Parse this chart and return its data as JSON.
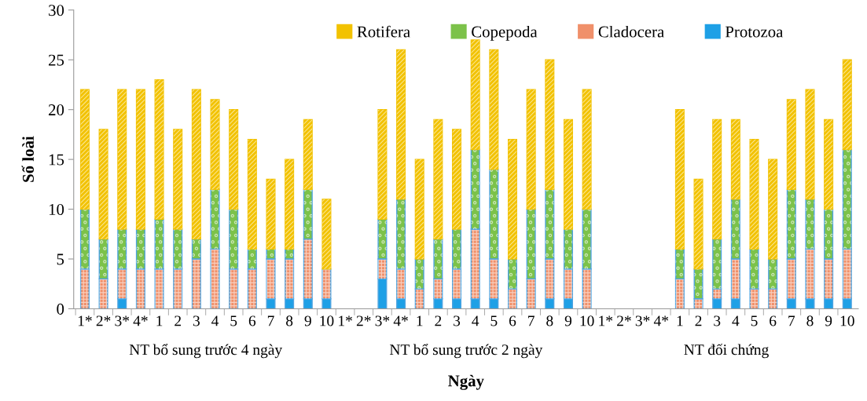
{
  "chart_data": {
    "type": "bar",
    "stacked": true,
    "xlabel": "Ngày",
    "ylabel": "Số loài",
    "categories": [
      "1*",
      "2*",
      "3*",
      "4*",
      "1",
      "2",
      "3",
      "4",
      "5",
      "6",
      "7",
      "8",
      "9",
      "10",
      "1*",
      "2*",
      "3*",
      "4*",
      "1",
      "2",
      "3",
      "4",
      "5",
      "6",
      "7",
      "8",
      "9",
      "10",
      "1*",
      "2*",
      "3*",
      "4*",
      "1",
      "2",
      "3",
      "4",
      "5",
      "6",
      "7",
      "8",
      "9",
      "10"
    ],
    "series": [
      {
        "name": "Protozoa",
        "color": "#1ea0e6",
        "values": [
          0,
          0,
          1,
          0,
          0,
          0,
          0,
          0,
          0,
          0,
          1,
          1,
          1,
          1,
          null,
          null,
          3,
          1,
          0,
          1,
          1,
          1,
          1,
          0,
          0,
          1,
          1,
          0,
          null,
          null,
          null,
          null,
          0,
          0,
          1,
          1,
          0,
          0,
          1,
          1,
          1,
          1
        ]
      },
      {
        "name": "Cladocera",
        "color": "#f0906a",
        "values": [
          4,
          3,
          3,
          4,
          4,
          4,
          5,
          6,
          4,
          4,
          4,
          4,
          6,
          3,
          null,
          null,
          2,
          3,
          2,
          2,
          3,
          7,
          4,
          2,
          3,
          4,
          3,
          4,
          null,
          null,
          null,
          null,
          3,
          1,
          1,
          4,
          2,
          2,
          4,
          5,
          4,
          5
        ]
      },
      {
        "name": "Copepoda",
        "color": "#7cc24a",
        "values": [
          6,
          4,
          4,
          4,
          5,
          4,
          2,
          6,
          6,
          2,
          1,
          1,
          5,
          0,
          null,
          null,
          4,
          7,
          3,
          4,
          4,
          8,
          9,
          3,
          7,
          7,
          4,
          6,
          null,
          null,
          null,
          null,
          3,
          3,
          5,
          6,
          4,
          3,
          7,
          5,
          5,
          10
        ]
      },
      {
        "name": "Rotifera",
        "color": "#f2c200",
        "values": [
          12,
          11,
          14,
          14,
          14,
          10,
          15,
          9,
          10,
          11,
          7,
          9,
          7,
          7,
          null,
          null,
          11,
          15,
          10,
          12,
          10,
          11,
          12,
          12,
          12,
          13,
          11,
          12,
          null,
          null,
          null,
          null,
          14,
          9,
          12,
          8,
          11,
          10,
          9,
          11,
          9,
          9
        ]
      }
    ],
    "ylim": [
      0,
      30
    ],
    "yticks": [
      0,
      5,
      10,
      15,
      20,
      25,
      30
    ],
    "grid": false,
    "legend": "top",
    "annotations": [
      "NT bổ sung trước 4 ngày",
      "NT bổ sung trước 2 ngày",
      "NT đối chứng"
    ]
  }
}
